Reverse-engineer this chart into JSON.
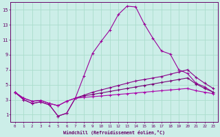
{
  "xlabel": "Windchill (Refroidissement éolien,°C)",
  "xlim": [
    -0.5,
    23.5
  ],
  "ylim": [
    0,
    16
  ],
  "xticks": [
    0,
    1,
    2,
    3,
    4,
    5,
    6,
    7,
    8,
    9,
    10,
    11,
    12,
    13,
    14,
    15,
    16,
    17,
    18,
    19,
    20,
    21,
    22,
    23
  ],
  "yticks": [
    1,
    3,
    5,
    7,
    9,
    11,
    13,
    15
  ],
  "bg_color": "#cceee8",
  "grid_color": "#aaddcc",
  "font_color": "#660066",
  "line_colors": [
    "#990099",
    "#880088",
    "#770077",
    "#aa00aa"
  ],
  "lines": [
    [
      4.0,
      3.0,
      2.5,
      2.7,
      2.3,
      0.8,
      1.2,
      3.2,
      6.2,
      9.2,
      10.8,
      12.3,
      14.4,
      15.5,
      15.4,
      13.1,
      11.2,
      9.5,
      9.1,
      7.0,
      6.5,
      5.2,
      4.7,
      4.0
    ],
    [
      4.0,
      3.0,
      2.5,
      2.7,
      2.3,
      0.8,
      1.2,
      3.2,
      3.6,
      4.0,
      4.3,
      4.6,
      4.9,
      5.2,
      5.5,
      5.7,
      5.9,
      6.1,
      6.4,
      6.7,
      7.0,
      6.0,
      5.2,
      4.5
    ],
    [
      4.0,
      3.2,
      2.8,
      2.9,
      2.5,
      2.2,
      2.8,
      3.2,
      3.5,
      3.7,
      3.9,
      4.1,
      4.3,
      4.5,
      4.7,
      4.9,
      5.1,
      5.3,
      5.5,
      5.7,
      5.9,
      5.1,
      4.5,
      4.0
    ],
    [
      4.0,
      3.2,
      2.8,
      2.9,
      2.5,
      2.2,
      2.8,
      3.2,
      3.3,
      3.4,
      3.5,
      3.6,
      3.7,
      3.8,
      3.9,
      4.0,
      4.1,
      4.2,
      4.3,
      4.4,
      4.5,
      4.2,
      4.0,
      3.8
    ]
  ]
}
